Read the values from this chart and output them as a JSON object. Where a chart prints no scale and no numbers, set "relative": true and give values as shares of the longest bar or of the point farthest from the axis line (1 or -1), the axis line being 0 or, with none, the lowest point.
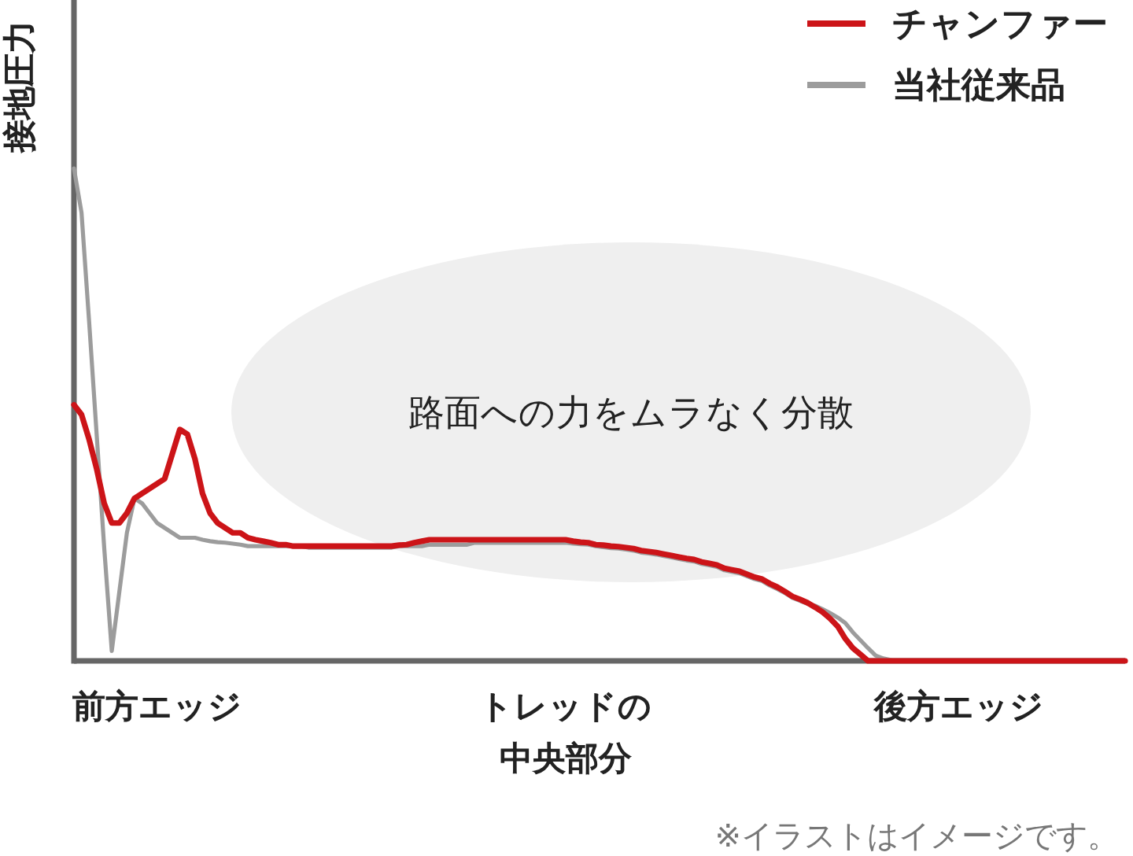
{
  "chart_data": {
    "type": "line",
    "relative": true,
    "ylabel": "接地圧力",
    "legend": "top right",
    "categories": [
      null,
      null,
      null,
      null,
      null,
      null,
      null,
      null,
      null,
      null,
      null,
      "前方エッジ",
      null,
      null,
      null,
      null,
      null,
      null,
      null,
      null,
      null,
      null,
      null,
      null,
      null,
      null,
      null,
      null,
      null,
      null,
      null,
      null,
      null,
      null,
      null,
      null,
      null,
      null,
      null,
      null,
      null,
      null,
      null,
      null,
      null,
      null,
      null,
      null,
      null,
      null,
      null,
      null,
      null,
      null,
      null,
      null,
      null,
      null,
      null,
      null,
      null,
      null,
      null,
      null,
      null,
      "トレッドの中央部分",
      null,
      null,
      null,
      null,
      null,
      null,
      null,
      null,
      null,
      null,
      null,
      null,
      null,
      null,
      null,
      null,
      null,
      null,
      null,
      null,
      null,
      null,
      null,
      null,
      null,
      null,
      null,
      null,
      null,
      null,
      null,
      null,
      null,
      null,
      null,
      null,
      null,
      null,
      null,
      null,
      null,
      null,
      null,
      null,
      null,
      null,
      null,
      null,
      null,
      null,
      null,
      "後方エッジ",
      null,
      null,
      null,
      null,
      null,
      null,
      null,
      null,
      null,
      null,
      null,
      null,
      null,
      null,
      null,
      null,
      null,
      null,
      null,
      null,
      null,
      null
    ],
    "series": [
      {
        "name": "チャンファー",
        "color": "#cc1418",
        "values": [
          0.52,
          0.5,
          0.45,
          0.39,
          0.32,
          0.28,
          0.28,
          0.3,
          0.33,
          0.34,
          0.35,
          0.36,
          0.37,
          0.42,
          0.47,
          0.46,
          0.41,
          0.34,
          0.3,
          0.28,
          0.27,
          0.26,
          0.26,
          0.25,
          0.246,
          0.243,
          0.24,
          0.236,
          0.236,
          0.233,
          0.233,
          0.233,
          0.233,
          0.233,
          0.233,
          0.233,
          0.233,
          0.233,
          0.233,
          0.233,
          0.233,
          0.233,
          0.233,
          0.235,
          0.236,
          0.24,
          0.243,
          0.246,
          0.246,
          0.246,
          0.246,
          0.246,
          0.246,
          0.246,
          0.246,
          0.246,
          0.246,
          0.246,
          0.246,
          0.246,
          0.246,
          0.246,
          0.246,
          0.246,
          0.246,
          0.246,
          0.243,
          0.241,
          0.24,
          0.236,
          0.235,
          0.233,
          0.232,
          0.23,
          0.228,
          0.224,
          0.222,
          0.22,
          0.217,
          0.214,
          0.211,
          0.208,
          0.206,
          0.201,
          0.198,
          0.195,
          0.188,
          0.185,
          0.182,
          0.176,
          0.17,
          0.166,
          0.157,
          0.15,
          0.141,
          0.131,
          0.125,
          0.118,
          0.109,
          0.099,
          0.086,
          0.07,
          0.045,
          0.026,
          0.013,
          0,
          0,
          0,
          0,
          0,
          0,
          0,
          0,
          0,
          0,
          0,
          0,
          0,
          0,
          0,
          0,
          0,
          0,
          0,
          0,
          0,
          0,
          0,
          0,
          0,
          0,
          0,
          0,
          0,
          0,
          0,
          0,
          0,
          0,
          0
        ]
      },
      {
        "name": "当社従来品",
        "color": "#9c9c9c",
        "values": [
          1,
          0.91,
          0.69,
          0.46,
          0.23,
          0.02,
          0.14,
          0.26,
          0.33,
          0.32,
          0.3,
          0.28,
          0.27,
          0.26,
          0.25,
          0.25,
          0.25,
          0.246,
          0.243,
          0.241,
          0.24,
          0.238,
          0.236,
          0.233,
          0.233,
          0.233,
          0.233,
          0.233,
          0.233,
          0.233,
          0.233,
          0.23,
          0.23,
          0.23,
          0.23,
          0.23,
          0.23,
          0.23,
          0.23,
          0.23,
          0.23,
          0.23,
          0.23,
          0.233,
          0.233,
          0.233,
          0.233,
          0.236,
          0.236,
          0.236,
          0.236,
          0.236,
          0.236,
          0.24,
          0.24,
          0.24,
          0.24,
          0.24,
          0.24,
          0.24,
          0.24,
          0.24,
          0.24,
          0.24,
          0.24,
          0.24,
          0.238,
          0.237,
          0.236,
          0.233,
          0.231,
          0.229,
          0.228,
          0.226,
          0.224,
          0.22,
          0.218,
          0.216,
          0.213,
          0.21,
          0.207,
          0.204,
          0.202,
          0.197,
          0.194,
          0.191,
          0.184,
          0.181,
          0.178,
          0.172,
          0.166,
          0.162,
          0.153,
          0.146,
          0.138,
          0.128,
          0.122,
          0.116,
          0.112,
          0.105,
          0.097,
          0.088,
          0.077,
          0.058,
          0.042,
          0.026,
          0.011,
          0.005,
          0.002,
          null,
          null,
          null,
          null,
          null,
          null,
          null,
          null,
          null,
          null,
          null,
          null,
          null,
          null,
          null,
          null,
          null,
          null,
          null,
          null,
          null,
          null,
          null,
          null,
          null,
          null,
          null,
          null,
          null,
          null,
          null
        ]
      }
    ],
    "annotations": [
      "路面への力をムラなく分散",
      "※イラストはイメージです。"
    ]
  }
}
